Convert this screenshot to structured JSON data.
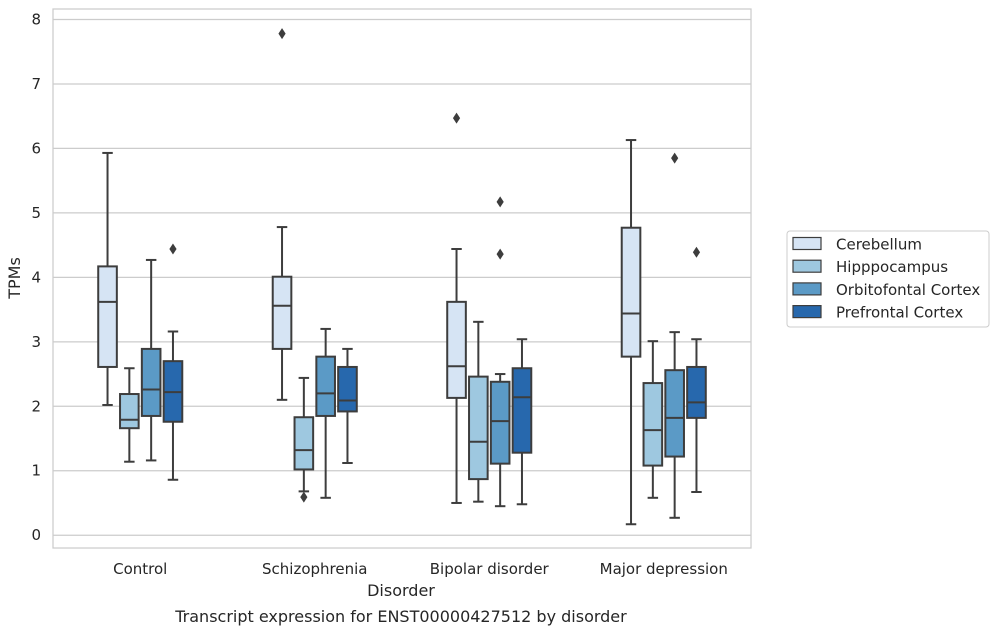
{
  "chart_data": {
    "type": "box",
    "title": "",
    "caption": "Transcript expression for ENST00000427512 by disorder",
    "xlabel": "Disorder",
    "ylabel": "TPMs",
    "ylim": [
      -0.2,
      8.15
    ],
    "yticks": [
      0,
      1,
      2,
      3,
      4,
      5,
      6,
      7,
      8
    ],
    "grid": "horizontal",
    "legend_position": "right",
    "categories": [
      "Control",
      "Schizophrenia",
      "Bipolar disorder",
      "Major depression"
    ],
    "series": [
      {
        "name": "Cerebellum",
        "color": "#d6e4f4",
        "boxes": [
          {
            "whislo": 2.02,
            "q1": 2.61,
            "med": 3.62,
            "q3": 4.17,
            "whishi": 5.93,
            "fliers": []
          },
          {
            "whislo": 2.1,
            "q1": 2.89,
            "med": 3.56,
            "q3": 4.01,
            "whishi": 4.78,
            "fliers": [
              7.78
            ]
          },
          {
            "whislo": 0.5,
            "q1": 2.13,
            "med": 2.62,
            "q3": 3.62,
            "whishi": 4.44,
            "fliers": [
              6.47
            ]
          },
          {
            "whislo": 0.17,
            "q1": 2.77,
            "med": 3.44,
            "q3": 4.77,
            "whishi": 6.13,
            "fliers": []
          }
        ]
      },
      {
        "name": "Hipppocampus",
        "color": "#9ec8e0",
        "boxes": [
          {
            "whislo": 1.14,
            "q1": 1.66,
            "med": 1.79,
            "q3": 2.19,
            "whishi": 2.59,
            "fliers": []
          },
          {
            "whislo": 0.68,
            "q1": 1.02,
            "med": 1.32,
            "q3": 1.83,
            "whishi": 2.44,
            "fliers": [
              0.59
            ]
          },
          {
            "whislo": 0.52,
            "q1": 0.87,
            "med": 1.45,
            "q3": 2.46,
            "whishi": 3.31,
            "fliers": []
          },
          {
            "whislo": 0.58,
            "q1": 1.08,
            "med": 1.63,
            "q3": 2.36,
            "whishi": 3.01,
            "fliers": []
          }
        ]
      },
      {
        "name": "Orbitofontal Cortex",
        "color": "#5b9ac6",
        "boxes": [
          {
            "whislo": 1.16,
            "q1": 1.85,
            "med": 2.26,
            "q3": 2.89,
            "whishi": 4.27,
            "fliers": []
          },
          {
            "whislo": 0.58,
            "q1": 1.85,
            "med": 2.2,
            "q3": 2.77,
            "whishi": 3.2,
            "fliers": []
          },
          {
            "whislo": 0.45,
            "q1": 1.11,
            "med": 1.77,
            "q3": 2.38,
            "whishi": 2.5,
            "fliers": [
              5.17,
              4.36
            ]
          },
          {
            "whislo": 0.27,
            "q1": 1.22,
            "med": 1.82,
            "q3": 2.56,
            "whishi": 3.15,
            "fliers": [
              5.85
            ]
          }
        ]
      },
      {
        "name": "Prefrontal Cortex",
        "color": "#2768ad",
        "boxes": [
          {
            "whislo": 0.86,
            "q1": 1.76,
            "med": 2.22,
            "q3": 2.7,
            "whishi": 3.16,
            "fliers": [
              4.44
            ]
          },
          {
            "whislo": 1.12,
            "q1": 1.92,
            "med": 2.09,
            "q3": 2.61,
            "whishi": 2.89,
            "fliers": []
          },
          {
            "whislo": 0.48,
            "q1": 1.28,
            "med": 2.14,
            "q3": 2.59,
            "whishi": 3.04,
            "fliers": []
          },
          {
            "whislo": 0.67,
            "q1": 1.82,
            "med": 2.06,
            "q3": 2.61,
            "whishi": 3.04,
            "fliers": [
              4.39
            ]
          }
        ]
      }
    ]
  }
}
